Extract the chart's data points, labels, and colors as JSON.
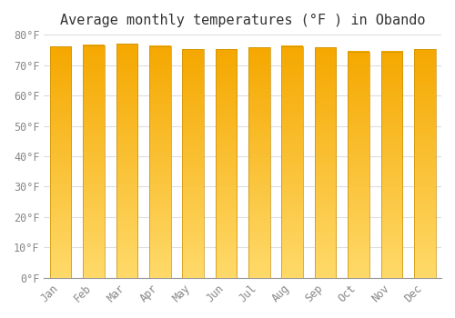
{
  "title": "Average monthly temperatures (°F ) in Obando",
  "months": [
    "Jan",
    "Feb",
    "Mar",
    "Apr",
    "May",
    "Jun",
    "Jul",
    "Aug",
    "Sep",
    "Oct",
    "Nov",
    "Dec"
  ],
  "values": [
    76.1,
    76.6,
    77.0,
    76.3,
    75.2,
    75.2,
    75.9,
    76.3,
    75.9,
    74.5,
    74.5,
    75.2
  ],
  "bar_color_top": "#F5A800",
  "bar_color_bottom": "#FFDA6A",
  "bar_edge_color": "#C8900A",
  "ylim": [
    0,
    80
  ],
  "yticks": [
    0,
    10,
    20,
    30,
    40,
    50,
    60,
    70,
    80
  ],
  "ytick_labels": [
    "0°F",
    "10°F",
    "20°F",
    "30°F",
    "40°F",
    "50°F",
    "60°F",
    "70°F",
    "80°F"
  ],
  "background_color": "#FFFFFF",
  "grid_color": "#DDDDDD",
  "title_fontsize": 11,
  "tick_fontsize": 8.5,
  "font_family": "monospace"
}
